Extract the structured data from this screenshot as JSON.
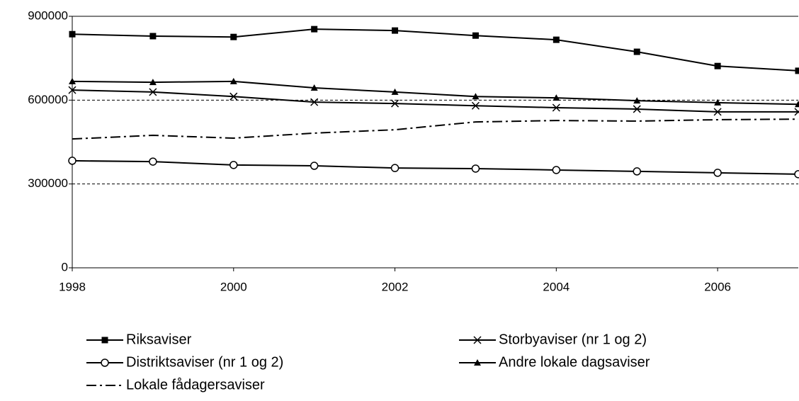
{
  "chart_data": {
    "type": "line",
    "x": [
      1998,
      1999,
      2000,
      2001,
      2002,
      2003,
      2004,
      2005,
      2006,
      2007
    ],
    "xlim": [
      1998,
      2007
    ],
    "xticks": [
      1998,
      2000,
      2002,
      2004,
      2006
    ],
    "ylim": [
      0,
      900000
    ],
    "yticks": [
      0,
      300000,
      600000,
      900000
    ],
    "grid": true,
    "series": [
      {
        "name": "Riksaviser",
        "color": "#000000",
        "marker": "square",
        "dash": "solid",
        "values": [
          836000,
          829000,
          826000,
          854000,
          849000,
          831000,
          816000,
          773000,
          722000,
          705000
        ]
      },
      {
        "name": "Storbyaviser (nr 1 og 2)",
        "color": "#000000",
        "marker": "x",
        "dash": "solid",
        "values": [
          636000,
          629000,
          613000,
          593000,
          588000,
          580000,
          573000,
          568000,
          558000,
          558000
        ]
      },
      {
        "name": "Distriktsaviser (nr 1 og 2)",
        "color": "#000000",
        "marker": "circle",
        "dash": "solid",
        "values": [
          383000,
          380000,
          368000,
          365000,
          357000,
          355000,
          350000,
          345000,
          340000,
          335000
        ]
      },
      {
        "name": "Andre lokale dagsaviser",
        "color": "#000000",
        "marker": "triangle",
        "dash": "solid",
        "values": [
          667000,
          664000,
          667000,
          644000,
          629000,
          613000,
          608000,
          598000,
          591000,
          585000
        ]
      },
      {
        "name": "Lokale fådagersaviser",
        "color": "#000000",
        "marker": "none",
        "dash": "dashdot",
        "values": [
          461000,
          474000,
          464000,
          482000,
          494000,
          522000,
          527000,
          525000,
          530000,
          532000
        ]
      }
    ]
  }
}
